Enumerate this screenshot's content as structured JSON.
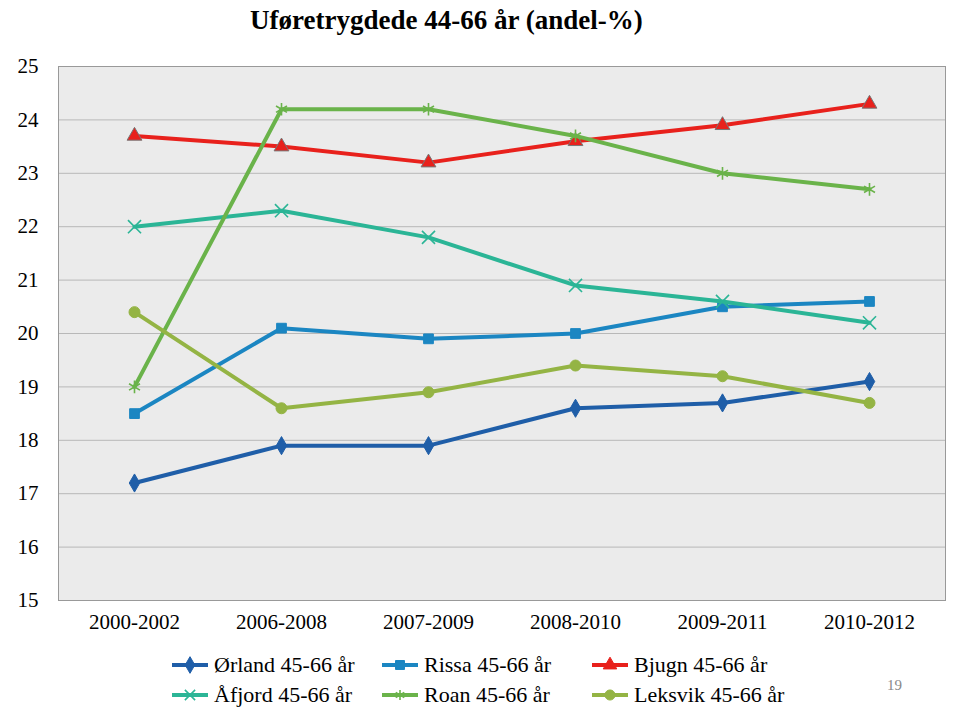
{
  "chart_data": {
    "type": "line",
    "title": "Uføretrygdede 44-66 år (andel-%)",
    "categories": [
      "2000-2002",
      "2006-2008",
      "2007-2009",
      "2008-2010",
      "2009-2011",
      "2010-2012"
    ],
    "series": [
      {
        "name": "Ørland 45-66 år",
        "color": "#1f5ea8",
        "marker": "diamond",
        "values": [
          17.2,
          17.9,
          17.9,
          18.6,
          18.7,
          19.1
        ]
      },
      {
        "name": "Rissa 45-66 år",
        "color": "#1b86c2",
        "marker": "square",
        "values": [
          18.5,
          20.1,
          19.9,
          20.0,
          20.5,
          20.6
        ]
      },
      {
        "name": "Bjugn 45-66 år",
        "color": "#e8211c",
        "marker": "triangle",
        "values": [
          23.7,
          23.5,
          23.2,
          23.6,
          23.9,
          24.3
        ]
      },
      {
        "name": "Åfjord 45-66 år",
        "color": "#2bb596",
        "marker": "times",
        "values": [
          22.0,
          22.3,
          21.8,
          20.9,
          20.6,
          20.2
        ]
      },
      {
        "name": "Roan 45-66 år",
        "color": "#6ab34a",
        "marker": "asterisk",
        "values": [
          19.0,
          24.2,
          24.2,
          23.7,
          23.0,
          22.7
        ]
      },
      {
        "name": "Leksvik 45-66 år",
        "color": "#94b444",
        "marker": "circle",
        "values": [
          20.4,
          18.6,
          18.9,
          19.4,
          19.2,
          18.7
        ]
      }
    ],
    "ylim": [
      15,
      25
    ],
    "yticks": [
      15,
      16,
      17,
      18,
      19,
      20,
      21,
      22,
      23,
      24,
      25
    ],
    "grid": true,
    "legend": "bottom",
    "footer": "19"
  }
}
